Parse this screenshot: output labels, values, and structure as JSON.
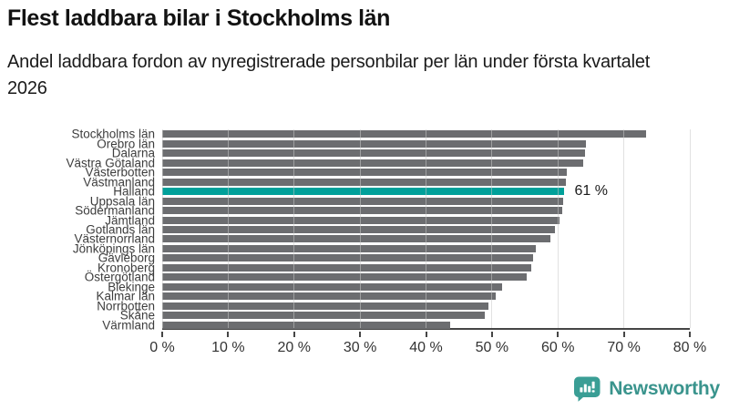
{
  "chart_data": {
    "type": "bar",
    "orientation": "horizontal",
    "title": "Flest laddbara bilar i Stockholms län",
    "subtitle": "Andel laddbara fordon av nyregistrerade personbilar per län under första kvartalet 2026",
    "categories": [
      "Stockholms län",
      "Örebro län",
      "Dalarna",
      "Västra Götaland",
      "Västerbotten",
      "Västmanland",
      "Halland",
      "Uppsala län",
      "Södermanland",
      "Jämtland",
      "Gotlands län",
      "Västernorrland",
      "Jönköpings län",
      "Gävleborg",
      "Kronoberg",
      "Östergötland",
      "Blekinge",
      "Kalmar län",
      "Norrbotten",
      "Skåne",
      "Värmland"
    ],
    "values": [
      73.4,
      64.3,
      64.1,
      63.8,
      61.4,
      61.2,
      61.0,
      60.8,
      60.7,
      60.3,
      59.6,
      58.9,
      56.7,
      56.2,
      56.0,
      55.2,
      51.6,
      50.6,
      49.4,
      48.9,
      43.6
    ],
    "highlight_index": 6,
    "highlight_label": "Halland",
    "annotation": "61 %",
    "xlim": [
      0,
      80
    ],
    "x_ticks": [
      "0 %",
      "10 %",
      "20 %",
      "30 %",
      "40 %",
      "50 %",
      "60 %",
      "70 %",
      "80 %"
    ],
    "grid": "vertical-light",
    "legend": "none",
    "bar_color": "#6c6d70",
    "highlight_color": "#00a09a",
    "axis_color": "#454545"
  },
  "footer": {
    "brand": "Newsworthy",
    "logo_icon": "bar-chart-speech-bubble-icon",
    "brand_color": "#3a948d"
  }
}
